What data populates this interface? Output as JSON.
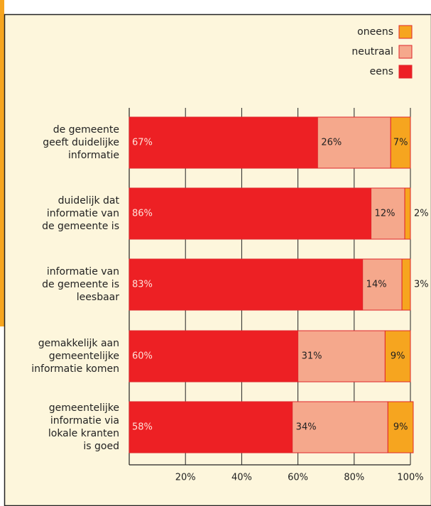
{
  "chart_data": {
    "type": "stacked-barh",
    "categories": [
      [
        "de gemeente",
        "geeft duidelijke",
        "informatie"
      ],
      [
        "duidelijk dat",
        "informatie van",
        "de gemeente is"
      ],
      [
        "informatie van",
        "de gemeente is",
        "leesbaar"
      ],
      [
        "gemakkelijk aan",
        "gemeentelijke",
        "informatie komen"
      ],
      [
        "gemeentelijke",
        "informatie via",
        "lokale kranten",
        "is goed"
      ]
    ],
    "series": [
      {
        "name": "eens",
        "color": "#ed2024",
        "values": [
          67,
          86,
          83,
          60,
          58
        ],
        "value_labels": [
          "67%",
          "86%",
          "83%",
          "60%",
          "58%"
        ]
      },
      {
        "name": "neutraal",
        "color": "#f5a88c",
        "values": [
          26,
          12,
          14,
          31,
          34
        ],
        "value_labels": [
          "26%",
          "12%",
          "14%",
          "31%",
          "34%"
        ]
      },
      {
        "name": "oneens",
        "color": "#f6a51f",
        "values": [
          7,
          2,
          3,
          9,
          9
        ],
        "value_labels": [
          "7%",
          "2%",
          "3%",
          "9%",
          "9%"
        ]
      }
    ],
    "xlim": [
      0,
      100
    ],
    "xticks": [
      {
        "value": 20,
        "label": "20%"
      },
      {
        "value": 40,
        "label": "40%"
      },
      {
        "value": 60,
        "label": "60%"
      },
      {
        "value": 80,
        "label": "80%"
      },
      {
        "value": 100,
        "label": "100%"
      }
    ],
    "grid": true,
    "legend": "top-right"
  }
}
